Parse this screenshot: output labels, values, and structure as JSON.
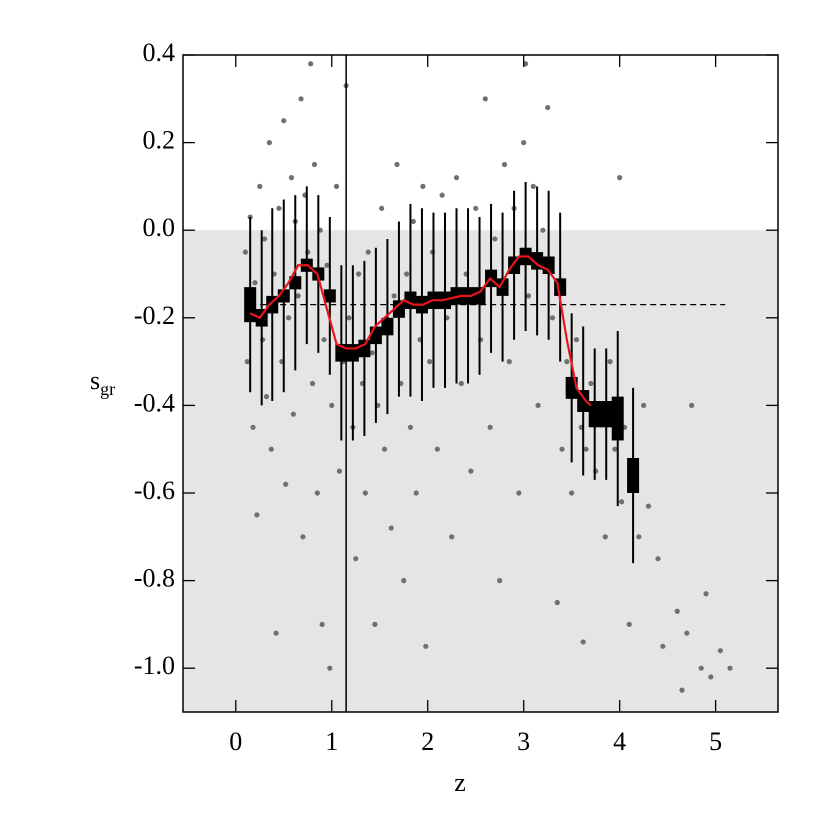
{
  "chart_data": {
    "type": "scatter",
    "xlabel": "z",
    "ylabel": {
      "text": "s",
      "subscript": "gr"
    },
    "xlim": [
      -0.55,
      5.65
    ],
    "ylim": [
      -1.1,
      0.4
    ],
    "xticks": [
      0,
      1,
      2,
      3,
      4,
      5
    ],
    "yticks": [
      0.4,
      0.2,
      {
        "value": 0,
        "label": "0.0"
      },
      -0.2,
      -0.4,
      -0.6,
      -0.8,
      {
        "value": -1,
        "label": "-1.0"
      }
    ],
    "shade_ymax": 0,
    "shade_color": "#e5e5e5",
    "vline_x": 1.15,
    "hline": {
      "y": -0.17,
      "x": [
        0.15,
        5.1
      ]
    },
    "points": {
      "color": "#707070",
      "x": [
        0.1,
        0.12,
        0.15,
        0.18,
        0.2,
        0.22,
        0.25,
        0.28,
        0.3,
        0.32,
        0.35,
        0.37,
        0.4,
        0.42,
        0.45,
        0.48,
        0.5,
        0.52,
        0.55,
        0.58,
        0.6,
        0.62,
        0.65,
        0.68,
        0.7,
        0.72,
        0.75,
        0.78,
        0.8,
        0.82,
        0.85,
        0.88,
        0.9,
        0.92,
        0.95,
        0.98,
        1.0,
        1.05,
        1.08,
        1.12,
        1.15,
        1.18,
        1.22,
        1.25,
        1.28,
        1.32,
        1.35,
        1.38,
        1.42,
        1.45,
        1.48,
        1.52,
        1.55,
        1.58,
        1.62,
        1.65,
        1.68,
        1.72,
        1.75,
        1.78,
        1.82,
        1.85,
        1.88,
        1.92,
        1.95,
        1.98,
        2.02,
        2.05,
        2.1,
        2.15,
        2.2,
        2.25,
        2.3,
        2.35,
        2.4,
        2.45,
        2.5,
        2.55,
        2.6,
        2.65,
        2.7,
        2.75,
        2.8,
        2.85,
        2.9,
        2.95,
        3.0,
        3.02,
        3.05,
        3.1,
        3.15,
        3.2,
        3.25,
        3.3,
        3.35,
        3.4,
        3.45,
        3.5,
        3.55,
        3.6,
        3.62,
        3.65,
        3.7,
        3.75,
        3.8,
        3.85,
        3.9,
        3.95,
        4.0,
        4.02,
        4.05,
        4.1,
        4.15,
        4.2,
        4.25,
        4.3,
        4.4,
        4.45,
        4.6,
        4.7,
        4.75,
        4.85,
        4.9,
        4.95,
        5.05,
        5.15,
        4.65
      ],
      "y": [
        -0.05,
        -0.3,
        0.03,
        -0.45,
        -0.12,
        -0.65,
        0.1,
        -0.25,
        -0.02,
        -0.38,
        0.2,
        -0.5,
        -0.1,
        -0.92,
        0.05,
        -0.3,
        0.25,
        -0.58,
        -0.2,
        0.12,
        -0.42,
        0.02,
        -0.15,
        0.3,
        -0.7,
        0.08,
        -0.05,
        0.38,
        -0.35,
        0.15,
        -0.6,
        0.0,
        -0.9,
        -0.25,
        -0.08,
        -1.0,
        -0.4,
        0.1,
        -0.55,
        -0.3,
        0.33,
        -0.2,
        -0.45,
        -0.75,
        -0.1,
        -0.35,
        -0.6,
        -0.05,
        -0.28,
        -0.9,
        -0.4,
        0.05,
        -0.5,
        -0.22,
        -0.68,
        -0.15,
        0.15,
        -0.35,
        -0.8,
        -0.1,
        -0.45,
        0.02,
        -0.6,
        -0.25,
        0.1,
        -0.95,
        -0.3,
        -0.05,
        -0.5,
        0.08,
        -0.2,
        -0.7,
        0.12,
        -0.35,
        -0.1,
        -0.55,
        0.05,
        -0.25,
        0.3,
        -0.45,
        -0.02,
        -0.8,
        0.15,
        -0.3,
        0.05,
        -0.6,
        0.2,
        0.38,
        -0.15,
        0.1,
        -0.4,
        0.0,
        0.28,
        -0.2,
        -0.85,
        -0.5,
        -0.3,
        -0.6,
        -0.25,
        -0.45,
        -0.94,
        -0.5,
        -0.35,
        -0.55,
        -0.4,
        -0.7,
        -0.3,
        -0.5,
        0.12,
        -0.62,
        -0.45,
        -0.9,
        -0.55,
        -0.7,
        -0.4,
        -0.63,
        -0.75,
        -0.95,
        -0.87,
        -0.92,
        -0.4,
        -1.0,
        -0.83,
        -1.02,
        -0.96,
        -1.0,
        -1.05
      ]
    },
    "bins": {
      "x": [
        0.15,
        0.27,
        0.38,
        0.5,
        0.62,
        0.74,
        0.86,
        0.98,
        1.1,
        1.22,
        1.34,
        1.46,
        1.58,
        1.7,
        1.82,
        1.94,
        2.06,
        2.18,
        2.3,
        2.42,
        2.54,
        2.66,
        2.78,
        2.9,
        3.02,
        3.14,
        3.26,
        3.38,
        3.5,
        3.62,
        3.74,
        3.86,
        3.98,
        4.14
      ],
      "median": [
        -0.17,
        -0.2,
        -0.17,
        -0.15,
        -0.12,
        -0.08,
        -0.1,
        -0.15,
        -0.28,
        -0.28,
        -0.27,
        -0.24,
        -0.22,
        -0.18,
        -0.16,
        -0.17,
        -0.16,
        -0.16,
        -0.15,
        -0.15,
        -0.15,
        -0.11,
        -0.13,
        -0.08,
        -0.06,
        -0.07,
        -0.08,
        -0.13,
        -0.36,
        -0.39,
        -0.42,
        -0.42,
        -0.43,
        -0.56
      ],
      "sem": [
        0.04,
        0.02,
        0.02,
        0.015,
        0.015,
        0.015,
        0.015,
        0.015,
        0.02,
        0.02,
        0.02,
        0.02,
        0.02,
        0.02,
        0.02,
        0.02,
        0.02,
        0.02,
        0.02,
        0.02,
        0.02,
        0.02,
        0.02,
        0.02,
        0.02,
        0.02,
        0.02,
        0.02,
        0.025,
        0.025,
        0.03,
        0.03,
        0.05,
        0.04
      ],
      "sd": [
        0.2,
        0.2,
        0.22,
        0.22,
        0.2,
        0.18,
        0.18,
        0.18,
        0.2,
        0.2,
        0.2,
        0.2,
        0.2,
        0.2,
        0.22,
        0.22,
        0.2,
        0.2,
        0.2,
        0.2,
        0.18,
        0.17,
        0.17,
        0.17,
        0.17,
        0.17,
        0.17,
        0.17,
        0.17,
        0.17,
        0.15,
        0.15,
        0.2,
        0.2
      ]
    },
    "smooth": {
      "color": "#e8141e",
      "x": [
        0.15,
        0.25,
        0.35,
        0.45,
        0.55,
        0.65,
        0.75,
        0.85,
        0.95,
        1.05,
        1.15,
        1.25,
        1.35,
        1.45,
        1.55,
        1.65,
        1.75,
        1.85,
        1.95,
        2.05,
        2.15,
        2.25,
        2.35,
        2.45,
        2.55,
        2.65,
        2.75,
        2.85,
        2.95,
        3.05,
        3.15,
        3.25,
        3.35,
        3.45,
        3.55,
        3.65,
        3.7
      ],
      "y": [
        -0.19,
        -0.2,
        -0.17,
        -0.15,
        -0.12,
        -0.08,
        -0.08,
        -0.1,
        -0.18,
        -0.26,
        -0.27,
        -0.27,
        -0.26,
        -0.22,
        -0.2,
        -0.18,
        -0.16,
        -0.17,
        -0.17,
        -0.16,
        -0.16,
        -0.155,
        -0.15,
        -0.15,
        -0.14,
        -0.11,
        -0.13,
        -0.09,
        -0.06,
        -0.06,
        -0.08,
        -0.09,
        -0.12,
        -0.25,
        -0.36,
        -0.39,
        -0.4
      ]
    }
  }
}
